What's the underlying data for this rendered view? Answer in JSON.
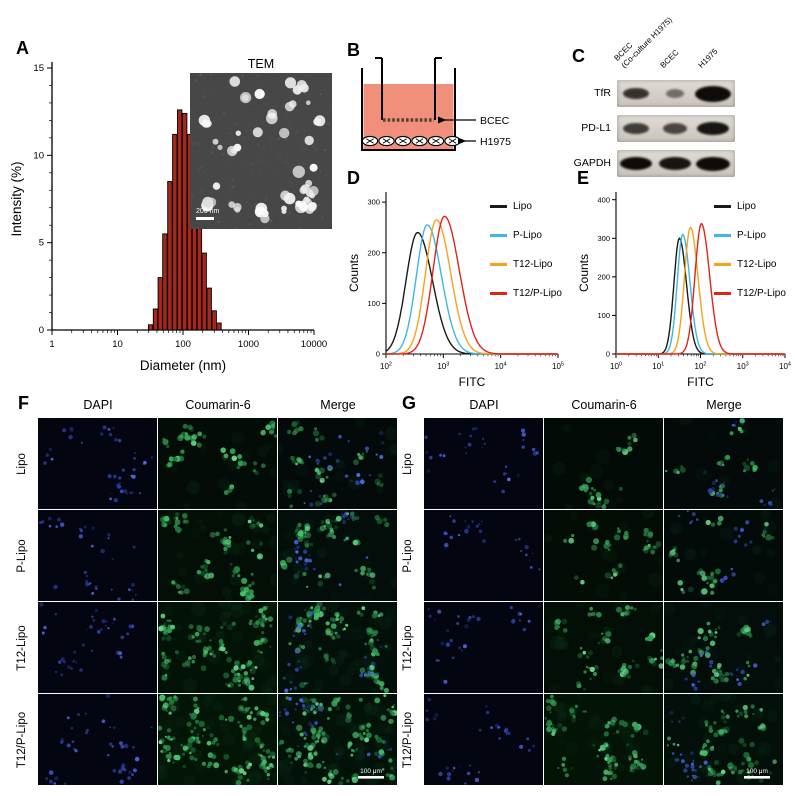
{
  "panels": {
    "a": {
      "letter": "A",
      "tem_title": "TEM",
      "tem_scale_bar": "200 nm"
    },
    "b": {
      "letter": "B",
      "label_top": "BCEC",
      "label_bottom": "H1975"
    },
    "c": {
      "letter": "C",
      "column_labels": [
        [
          "BCEC",
          "(Co-culture H1975)"
        ],
        [
          "BCEC"
        ],
        [
          "H1975"
        ]
      ],
      "rows": [
        {
          "label": "TfR",
          "bands": [
            [
              0.8,
              26,
              11
            ],
            [
              0.5,
              18,
              9
            ],
            [
              1.0,
              36,
              16
            ]
          ]
        },
        {
          "label": "PD-L1",
          "bands": [
            [
              0.75,
              26,
              11
            ],
            [
              0.7,
              24,
              11
            ],
            [
              0.95,
              32,
              13
            ]
          ]
        },
        {
          "label": "GAPDH",
          "bands": [
            [
              1.0,
              32,
              13
            ],
            [
              0.95,
              32,
              13
            ],
            [
              1.0,
              34,
              14
            ]
          ]
        }
      ]
    },
    "d": {
      "letter": "D"
    },
    "e": {
      "letter": "E"
    },
    "f": {
      "letter": "F",
      "column_headers": [
        "DAPI",
        "Coumarin-6",
        "Merge"
      ],
      "row_labels": [
        "Lipo",
        "P-Lipo",
        "T12-Lipo",
        "T12/P-Lipo"
      ],
      "green_levels": [
        0.35,
        0.55,
        0.8,
        1.0
      ],
      "blue_levels": [
        0.55,
        0.5,
        0.55,
        0.6
      ],
      "green_base": 160,
      "blue_base": 70,
      "scale_bar": "100 μm"
    },
    "g": {
      "letter": "G",
      "column_headers": [
        "DAPI",
        "Coumarin-6",
        "Merge"
      ],
      "row_labels": [
        "Lipo",
        "P-Lipo",
        "T12-Lipo",
        "T12/P-Lipo"
      ],
      "green_levels": [
        0.3,
        0.4,
        0.6,
        0.85
      ],
      "blue_levels": [
        0.5,
        0.45,
        0.5,
        0.55
      ],
      "green_base": 115,
      "blue_base": 60,
      "scale_bar": "100 μm"
    }
  },
  "chart_data": [
    {
      "id": "A",
      "type": "bar",
      "title": "",
      "xlabel": "Diameter (nm)",
      "ylabel": "Intensity (%)",
      "x_scale": "log",
      "x_ticks": [
        "1",
        "10",
        "100",
        "1000",
        "10000"
      ],
      "xlim_log10": [
        0,
        4
      ],
      "ylim": [
        0,
        15
      ],
      "y_ticks": [
        0,
        5,
        10,
        15
      ],
      "bar_color": "#a5281b",
      "bar_edge": "#000000",
      "bin_centers_nm": [
        32,
        38,
        45,
        53,
        63,
        75,
        89,
        106,
        126,
        150,
        178,
        211,
        251,
        299,
        355
      ],
      "values_percent": [
        0.3,
        1.2,
        3.0,
        5.5,
        8.5,
        11.2,
        12.6,
        12.4,
        11.2,
        9.3,
        6.8,
        4.4,
        2.4,
        1.1,
        0.4
      ]
    },
    {
      "id": "D",
      "type": "line",
      "xlabel": "FITC",
      "ylabel": "Counts",
      "x_scale": "log",
      "xlim_log10": [
        2,
        5
      ],
      "ylim": [
        0,
        320
      ],
      "y_ticks": [
        0,
        100,
        200,
        300
      ],
      "legend_position": "right",
      "series": [
        {
          "name": "Lipo",
          "color": "#1a1a1a",
          "peak_log10_fitc": 2.55,
          "peak_counts": 240,
          "log_sigma": 0.2
        },
        {
          "name": "P-Lipo",
          "color": "#3bb7e8",
          "peak_log10_fitc": 2.72,
          "peak_counts": 255,
          "log_sigma": 0.19
        },
        {
          "name": "T12-Lipo",
          "color": "#f6a21c",
          "peak_log10_fitc": 2.88,
          "peak_counts": 265,
          "log_sigma": 0.19
        },
        {
          "name": "T12/P-Lipo",
          "color": "#e02419",
          "peak_log10_fitc": 3.02,
          "peak_counts": 272,
          "log_sigma": 0.2
        }
      ]
    },
    {
      "id": "E",
      "type": "line",
      "xlabel": "FITC",
      "ylabel": "Counts",
      "x_scale": "log",
      "xlim_log10": [
        0,
        4
      ],
      "ylim": [
        0,
        420
      ],
      "y_ticks": [
        0,
        100,
        200,
        300,
        400
      ],
      "legend_position": "right",
      "series": [
        {
          "name": "Lipo",
          "color": "#1a1a1a",
          "peak_log10_fitc": 1.5,
          "peak_counts": 300,
          "log_sigma": 0.13
        },
        {
          "name": "P-Lipo",
          "color": "#3bb7e8",
          "peak_log10_fitc": 1.58,
          "peak_counts": 310,
          "log_sigma": 0.13
        },
        {
          "name": "T12-Lipo",
          "color": "#f6a21c",
          "peak_log10_fitc": 1.76,
          "peak_counts": 328,
          "log_sigma": 0.14
        },
        {
          "name": "T12/P-Lipo",
          "color": "#e02419",
          "peak_log10_fitc": 2.02,
          "peak_counts": 338,
          "log_sigma": 0.15
        }
      ]
    }
  ]
}
